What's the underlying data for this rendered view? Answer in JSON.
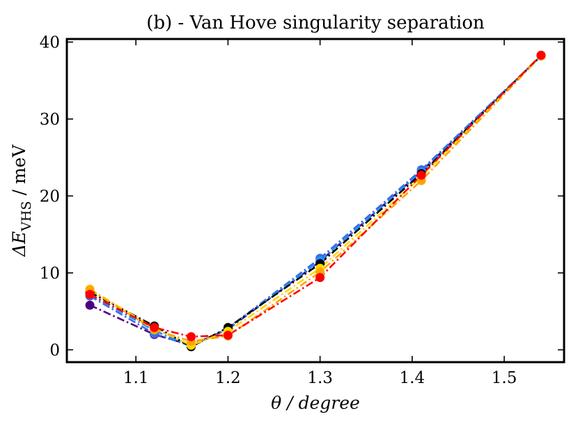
{
  "chart_data": {
    "type": "line",
    "title": "(b) - Van Hove singularity separation",
    "xlabel": "θ / degree",
    "ylabel_symbol": "ΔE",
    "ylabel_subscript": "VHS",
    "ylabel_unit": " / meV",
    "xlim": [
      1.025,
      1.565
    ],
    "ylim": [
      -1.6,
      40.4
    ],
    "xticks": [
      1.1,
      1.2,
      1.3,
      1.4,
      1.5
    ],
    "xtick_labels": [
      "1.1",
      "1.2",
      "1.3",
      "1.4",
      "1.5"
    ],
    "yticks": [
      0,
      10,
      20,
      30,
      40
    ],
    "ytick_labels": [
      "0",
      "10",
      "20",
      "30",
      "40"
    ],
    "grid": false,
    "series": [
      {
        "name": "indigo",
        "color": "#4b0082",
        "x": [
          1.05,
          1.12,
          1.16,
          1.2,
          1.3,
          1.41,
          1.54
        ],
        "values": [
          5.8,
          2.0,
          0.6,
          2.7,
          11.5,
          23.2,
          38.2
        ]
      },
      {
        "name": "royal blue",
        "color": "#4169e1",
        "x": [
          1.05,
          1.12,
          1.16,
          1.2,
          1.3,
          1.41,
          1.54
        ],
        "values": [
          7.0,
          2.1,
          0.5,
          2.8,
          11.9,
          23.4,
          38.2
        ]
      },
      {
        "name": "dodger blue",
        "color": "#1e90ff",
        "x": [
          1.05,
          1.12,
          1.16,
          1.2,
          1.3,
          1.41,
          1.54
        ],
        "values": [
          7.2,
          2.5,
          0.5,
          2.8,
          11.6,
          23.1,
          38.2
        ]
      },
      {
        "name": "black",
        "color": "#000000",
        "x": [
          1.05,
          1.12,
          1.16,
          1.2,
          1.3,
          1.41,
          1.54
        ],
        "values": [
          7.5,
          3.1,
          0.4,
          2.9,
          11.2,
          22.9,
          38.2
        ]
      },
      {
        "name": "gold",
        "color": "#ffd700",
        "x": [
          1.05,
          1.12,
          1.16,
          1.2,
          1.3,
          1.41,
          1.54
        ],
        "values": [
          7.9,
          2.8,
          0.6,
          2.4,
          10.6,
          22.5,
          38.2
        ]
      },
      {
        "name": "orange",
        "color": "#ffa500",
        "x": [
          1.05,
          1.12,
          1.16,
          1.2,
          1.3,
          1.41,
          1.54
        ],
        "values": [
          7.8,
          2.6,
          1.1,
          1.8,
          10.1,
          22.0,
          38.2
        ]
      },
      {
        "name": "red",
        "color": "#ff0000",
        "x": [
          1.05,
          1.12,
          1.16,
          1.2,
          1.3,
          1.41,
          1.54
        ],
        "values": [
          7.2,
          2.9,
          1.7,
          1.9,
          9.4,
          22.7,
          38.3
        ]
      }
    ]
  }
}
